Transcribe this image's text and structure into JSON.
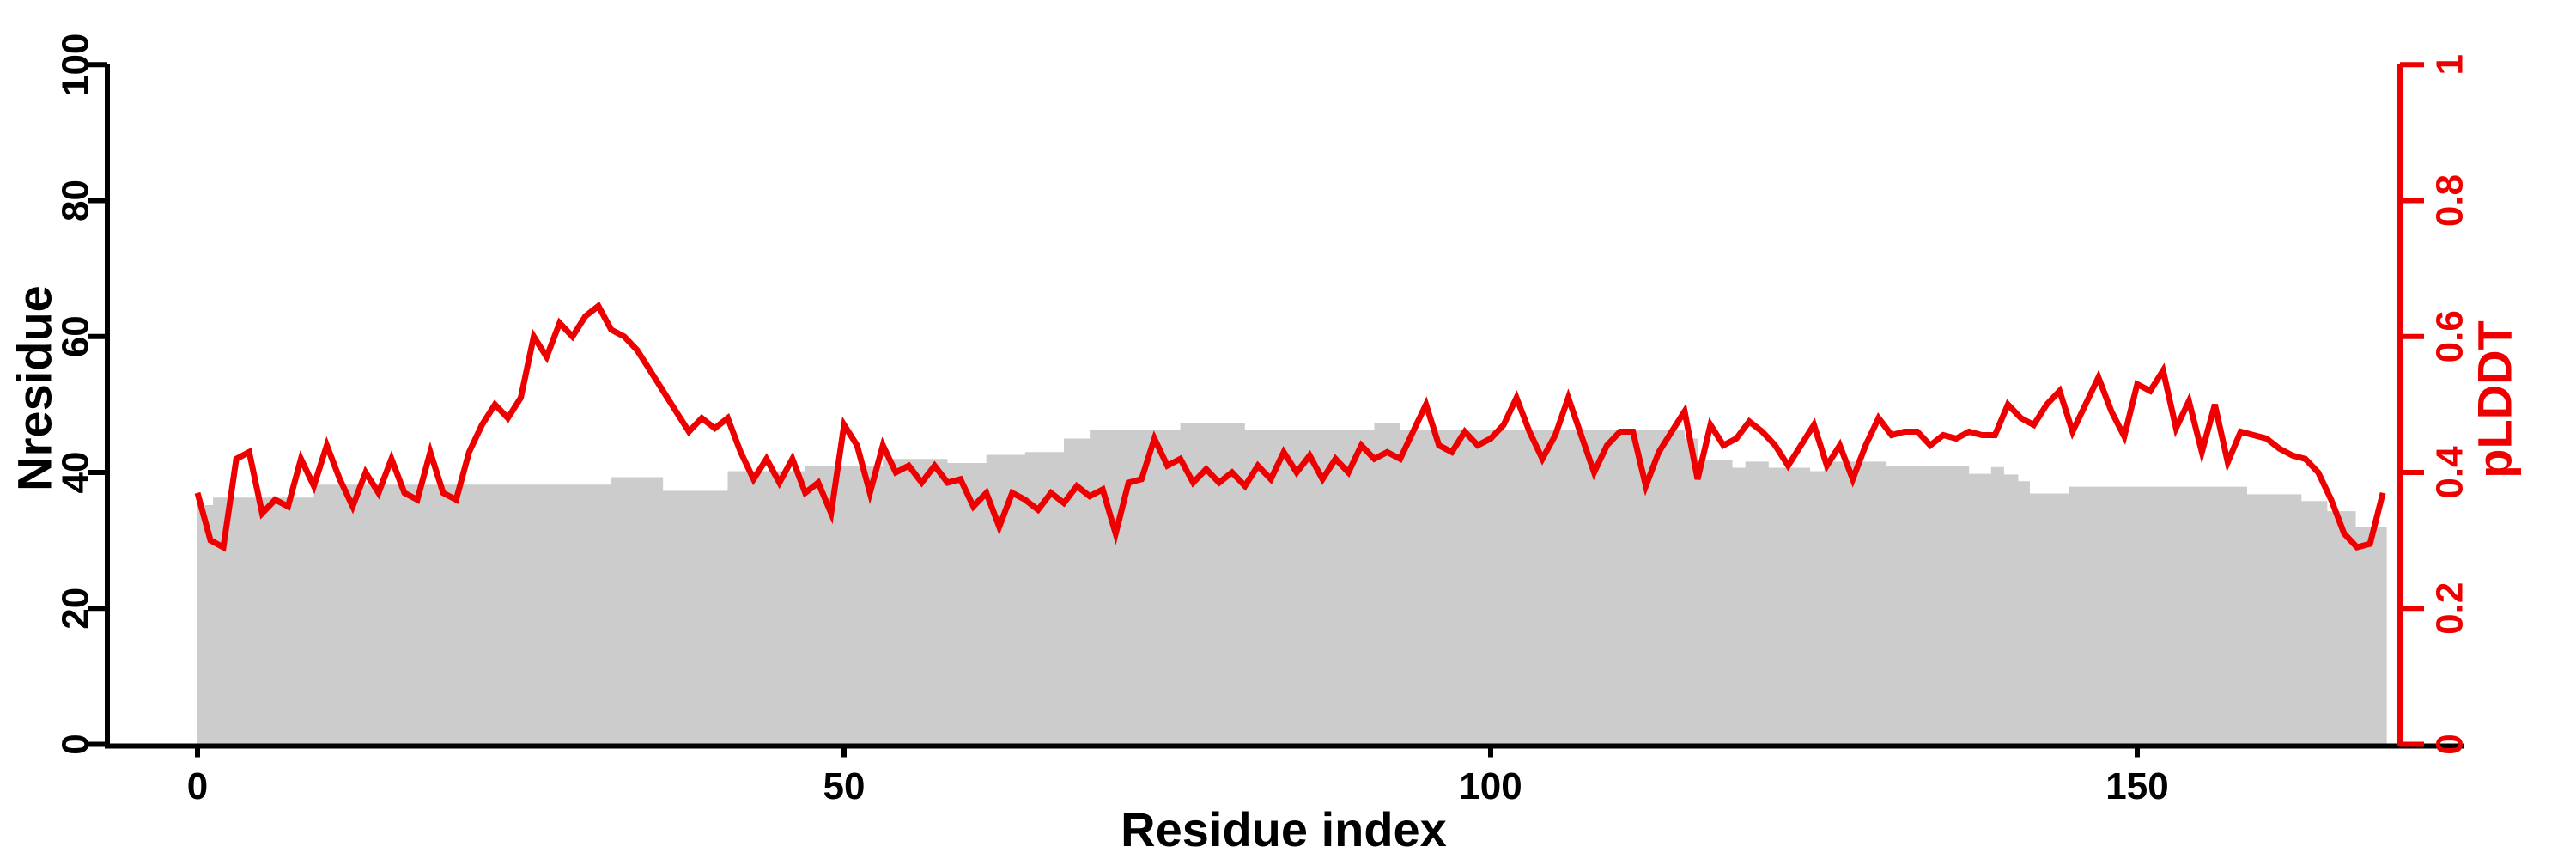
{
  "figure": {
    "background": "#ffffff",
    "plot_type": "dual-axis residue profile"
  },
  "chart_data": {
    "type": "line",
    "title": "",
    "grid": false,
    "legend": "none",
    "x_axis": {
      "label": "Residue index",
      "range": [
        0,
        170
      ],
      "ticks": [
        0,
        50,
        100,
        150
      ],
      "tick_labels": [
        "0",
        "50",
        "100",
        "150"
      ],
      "color": "#000000"
    },
    "left_axis": {
      "label": "Nresidue",
      "range": [
        0,
        100
      ],
      "ticks": [
        0,
        20,
        40,
        60,
        80,
        100
      ],
      "tick_labels": [
        "0",
        "20",
        "40",
        "60",
        "80",
        "100"
      ],
      "color": "#000000"
    },
    "right_axis": {
      "label": "pLDDT",
      "range": [
        0,
        1
      ],
      "ticks": [
        0,
        0.2,
        0.4,
        0.6,
        0.8,
        1
      ],
      "tick_labels": [
        "0",
        "0.2",
        "0.4",
        "0.6",
        "0.8",
        "1"
      ],
      "color": "#ee0000"
    },
    "series": [
      {
        "name": "Nresidue",
        "type": "step_area",
        "axis": "left",
        "color": "#cccccc",
        "x_end": 169.3,
        "steps": [
          [
            0,
            35.2
          ],
          [
            1.2,
            36.3
          ],
          [
            9,
            38.2
          ],
          [
            32,
            39.3
          ],
          [
            36,
            37.3
          ],
          [
            41,
            40.2
          ],
          [
            47,
            41.0
          ],
          [
            53,
            42.0
          ],
          [
            58,
            41.4
          ],
          [
            61,
            42.6
          ],
          [
            64,
            43.0
          ],
          [
            67,
            45.0
          ],
          [
            69,
            46.2
          ],
          [
            76,
            47.3
          ],
          [
            81,
            46.3
          ],
          [
            91,
            47.3
          ],
          [
            93,
            46.2
          ],
          [
            115,
            45.0
          ],
          [
            116,
            41.9
          ],
          [
            118.7,
            40.7
          ],
          [
            119.7,
            41.6
          ],
          [
            121.5,
            40.7
          ],
          [
            124.7,
            40.2
          ],
          [
            125.8,
            41.6
          ],
          [
            130.6,
            40.9
          ],
          [
            137,
            39.8
          ],
          [
            138.7,
            40.8
          ],
          [
            139.7,
            39.7
          ],
          [
            140.8,
            38.7
          ],
          [
            141.7,
            36.9
          ],
          [
            144.7,
            37.9
          ],
          [
            158.5,
            36.8
          ],
          [
            162.7,
            35.8
          ],
          [
            164.7,
            34.3
          ],
          [
            166.9,
            32.0
          ]
        ]
      },
      {
        "name": "pLDDT",
        "type": "line",
        "axis": "right",
        "color": "#ee0000",
        "x_start": 0,
        "x_step": 1,
        "values": [
          0.37,
          0.3,
          0.29,
          0.42,
          0.43,
          0.34,
          0.36,
          0.35,
          0.42,
          0.38,
          0.44,
          0.39,
          0.35,
          0.4,
          0.37,
          0.42,
          0.37,
          0.36,
          0.43,
          0.37,
          0.36,
          0.43,
          0.47,
          0.5,
          0.48,
          0.51,
          0.6,
          0.57,
          0.62,
          0.6,
          0.63,
          0.645,
          0.61,
          0.6,
          0.58,
          0.55,
          0.52,
          0.49,
          0.46,
          0.48,
          0.465,
          0.48,
          0.43,
          0.39,
          0.42,
          0.385,
          0.42,
          0.37,
          0.385,
          0.34,
          0.47,
          0.44,
          0.37,
          0.44,
          0.4,
          0.41,
          0.385,
          0.41,
          0.385,
          0.39,
          0.35,
          0.37,
          0.32,
          0.37,
          0.36,
          0.345,
          0.37,
          0.355,
          0.38,
          0.365,
          0.375,
          0.31,
          0.385,
          0.39,
          0.45,
          0.41,
          0.42,
          0.385,
          0.405,
          0.385,
          0.4,
          0.38,
          0.41,
          0.39,
          0.43,
          0.4,
          0.425,
          0.39,
          0.42,
          0.4,
          0.44,
          0.42,
          0.43,
          0.42,
          0.46,
          0.5,
          0.44,
          0.43,
          0.46,
          0.44,
          0.45,
          0.47,
          0.51,
          0.46,
          0.42,
          0.455,
          0.51,
          0.455,
          0.4,
          0.44,
          0.46,
          0.46,
          0.38,
          0.43,
          0.46,
          0.49,
          0.39,
          0.47,
          0.44,
          0.45,
          0.475,
          0.46,
          0.44,
          0.41,
          0.44,
          0.47,
          0.41,
          0.44,
          0.39,
          0.44,
          0.48,
          0.455,
          0.46,
          0.46,
          0.44,
          0.455,
          0.45,
          0.46,
          0.455,
          0.455,
          0.5,
          0.48,
          0.47,
          0.5,
          0.52,
          0.46,
          0.5,
          0.54,
          0.49,
          0.453,
          0.53,
          0.52,
          0.55,
          0.465,
          0.505,
          0.43,
          0.5,
          0.415,
          0.46,
          0.455,
          0.45,
          0.435,
          0.425,
          0.42,
          0.4,
          0.36,
          0.31,
          0.29,
          0.295,
          0.37
        ]
      }
    ]
  }
}
